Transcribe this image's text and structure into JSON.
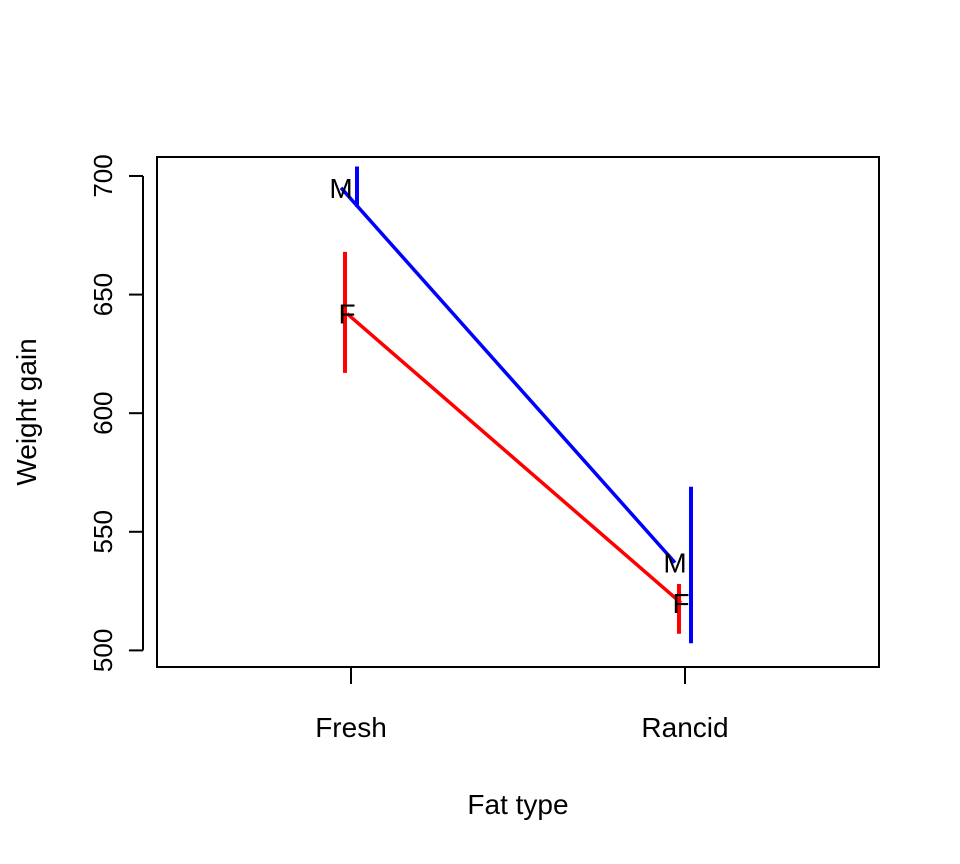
{
  "chart_data": {
    "type": "line",
    "title": "",
    "xlabel": "Fat type",
    "ylabel": "Weight gain",
    "categories": [
      "Fresh",
      "Rancid"
    ],
    "ylim": [
      493,
      708
    ],
    "yticks": [
      500,
      550,
      600,
      650,
      700
    ],
    "grid": false,
    "legend": "none",
    "series": [
      {
        "label": "M",
        "color": "#0000ff",
        "values": [
          695,
          537
        ],
        "err_low": [
          687,
          503
        ],
        "err_high": [
          704,
          569
        ]
      },
      {
        "label": "F",
        "color": "#ff0000",
        "values": [
          642,
          520
        ],
        "err_low": [
          617,
          507
        ],
        "err_high": [
          668,
          528
        ]
      }
    ]
  }
}
